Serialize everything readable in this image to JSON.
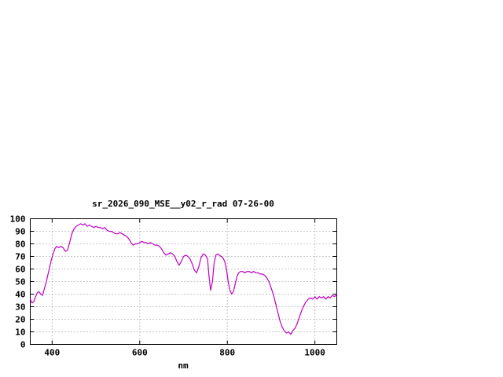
{
  "page": {
    "background": "#ffffff"
  },
  "chart_data": {
    "type": "line",
    "title": "sr_2026_090_MSE__y02_r_rad 07-26-00",
    "xlabel": "nm",
    "ylabel": "",
    "xlim": [
      350,
      1050
    ],
    "ylim": [
      0,
      100
    ],
    "xticks": [
      400,
      600,
      800,
      1000
    ],
    "yticks": [
      0,
      10,
      20,
      30,
      40,
      50,
      60,
      70,
      80,
      90,
      100
    ],
    "grid": true,
    "legend_position": "none",
    "line_color": "#c000c0",
    "axis_color": "#000000",
    "grid_color": "#909090",
    "series": [
      {
        "name": "sr_2026_090_MSE__y02_r_rad",
        "points": [
          [
            350,
            36
          ],
          [
            354,
            33
          ],
          [
            358,
            34
          ],
          [
            362,
            38
          ],
          [
            366,
            41
          ],
          [
            370,
            42
          ],
          [
            374,
            40
          ],
          [
            378,
            39
          ],
          [
            382,
            44
          ],
          [
            386,
            49
          ],
          [
            390,
            55
          ],
          [
            394,
            61
          ],
          [
            398,
            67
          ],
          [
            402,
            72
          ],
          [
            406,
            76
          ],
          [
            410,
            78
          ],
          [
            415,
            77
          ],
          [
            420,
            78
          ],
          [
            425,
            77
          ],
          [
            430,
            74
          ],
          [
            435,
            75
          ],
          [
            440,
            81
          ],
          [
            445,
            88
          ],
          [
            450,
            92
          ],
          [
            455,
            94
          ],
          [
            460,
            95
          ],
          [
            465,
            96
          ],
          [
            470,
            95
          ],
          [
            475,
            96
          ],
          [
            480,
            94
          ],
          [
            485,
            95
          ],
          [
            490,
            94
          ],
          [
            495,
            93
          ],
          [
            500,
            94
          ],
          [
            505,
            93
          ],
          [
            510,
            93
          ],
          [
            515,
            92
          ],
          [
            520,
            93
          ],
          [
            525,
            91
          ],
          [
            530,
            90
          ],
          [
            535,
            90
          ],
          [
            540,
            89
          ],
          [
            545,
            88
          ],
          [
            550,
            88
          ],
          [
            555,
            89
          ],
          [
            560,
            88
          ],
          [
            565,
            87
          ],
          [
            570,
            86
          ],
          [
            575,
            84
          ],
          [
            580,
            81
          ],
          [
            585,
            79
          ],
          [
            590,
            80
          ],
          [
            595,
            80
          ],
          [
            600,
            81
          ],
          [
            605,
            82
          ],
          [
            610,
            81
          ],
          [
            615,
            81
          ],
          [
            620,
            80
          ],
          [
            625,
            81
          ],
          [
            630,
            80
          ],
          [
            635,
            79
          ],
          [
            640,
            79
          ],
          [
            645,
            78
          ],
          [
            650,
            76
          ],
          [
            655,
            73
          ],
          [
            660,
            71
          ],
          [
            665,
            72
          ],
          [
            670,
            73
          ],
          [
            675,
            72
          ],
          [
            680,
            70
          ],
          [
            685,
            66
          ],
          [
            690,
            63
          ],
          [
            695,
            66
          ],
          [
            700,
            70
          ],
          [
            705,
            71
          ],
          [
            710,
            70
          ],
          [
            715,
            68
          ],
          [
            720,
            64
          ],
          [
            725,
            59
          ],
          [
            730,
            57
          ],
          [
            735,
            62
          ],
          [
            740,
            69
          ],
          [
            745,
            72
          ],
          [
            750,
            71
          ],
          [
            755,
            68
          ],
          [
            758,
            55
          ],
          [
            762,
            43
          ],
          [
            766,
            50
          ],
          [
            770,
            65
          ],
          [
            774,
            71
          ],
          [
            778,
            72
          ],
          [
            782,
            71
          ],
          [
            786,
            70
          ],
          [
            790,
            69
          ],
          [
            794,
            66
          ],
          [
            798,
            60
          ],
          [
            802,
            50
          ],
          [
            806,
            43
          ],
          [
            810,
            40
          ],
          [
            814,
            42
          ],
          [
            818,
            48
          ],
          [
            822,
            54
          ],
          [
            826,
            57
          ],
          [
            830,
            58
          ],
          [
            835,
            58
          ],
          [
            840,
            57
          ],
          [
            845,
            58
          ],
          [
            850,
            58
          ],
          [
            855,
            57
          ],
          [
            860,
            58
          ],
          [
            865,
            57
          ],
          [
            870,
            57
          ],
          [
            875,
            56
          ],
          [
            880,
            56
          ],
          [
            885,
            55
          ],
          [
            890,
            53
          ],
          [
            895,
            50
          ],
          [
            900,
            45
          ],
          [
            905,
            40
          ],
          [
            910,
            33
          ],
          [
            915,
            26
          ],
          [
            920,
            19
          ],
          [
            925,
            14
          ],
          [
            930,
            11
          ],
          [
            935,
            9
          ],
          [
            940,
            10
          ],
          [
            945,
            8
          ],
          [
            950,
            11
          ],
          [
            955,
            13
          ],
          [
            960,
            17
          ],
          [
            965,
            22
          ],
          [
            970,
            27
          ],
          [
            975,
            31
          ],
          [
            980,
            34
          ],
          [
            985,
            36
          ],
          [
            990,
            37
          ],
          [
            995,
            36
          ],
          [
            1000,
            38
          ],
          [
            1005,
            36
          ],
          [
            1010,
            38
          ],
          [
            1015,
            37
          ],
          [
            1020,
            38
          ],
          [
            1025,
            36
          ],
          [
            1030,
            38
          ],
          [
            1035,
            37
          ],
          [
            1040,
            39
          ],
          [
            1045,
            38
          ],
          [
            1050,
            40
          ]
        ]
      }
    ]
  }
}
